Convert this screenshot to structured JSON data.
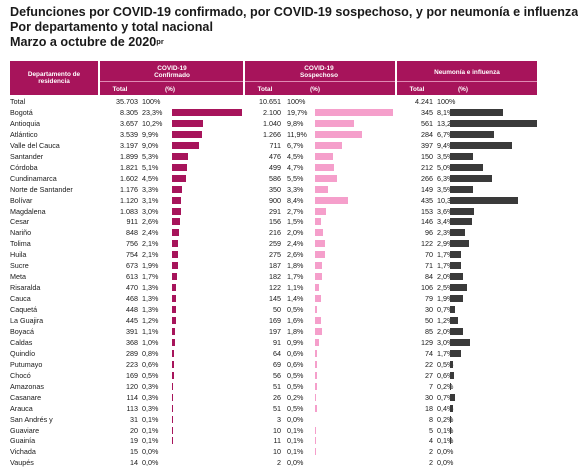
{
  "title_line1": "Defunciones por COVID-19 confirmado, por COVID-19 sospechoso, y por neumonía e influenza",
  "title_line2": "Por departamento y total nacional",
  "title_line3": "Marzo a octubre de 2020",
  "title_line3_sup": "pr",
  "headers": {
    "dept": "Departamento de residencia",
    "g1": "COVID-19 Confirmado",
    "g2": "COVID-19 Sospechoso",
    "g3": "Neumonía e influenza",
    "total": "Total",
    "pct": "(%)"
  },
  "colors": {
    "header": "#a7145b",
    "confirmado": "#a7145b",
    "sospechoso": "#f59fcb",
    "neumonia": "#3a3a3a"
  },
  "chart_data": {
    "type": "bar",
    "title": "Defunciones por COVID-19 confirmado, por COVID-19 sospechoso, y por neumonía e influenza",
    "categories": [
      "Total",
      "Bogotá",
      "Antioquia",
      "Atlántico",
      "Valle del Cauca",
      "Santander",
      "Córdoba",
      "Cundinamarca",
      "Norte de Santander",
      "Bolívar",
      "Magdalena",
      "Cesar",
      "Nariño",
      "Tolima",
      "Huila",
      "Sucre",
      "Meta",
      "Risaralda",
      "Cauca",
      "Caquetá",
      "La Guajira",
      "Boyacá",
      "Caldas",
      "Quindío",
      "Putumayo",
      "Chocó",
      "Amazonas",
      "Casanare",
      "Arauca",
      "San Andrés y",
      "Guaviare",
      "Guainía",
      "Vichada",
      "Vaupés"
    ],
    "series": [
      {
        "name": "COVID-19 Confirmado",
        "total": [
          "35.703",
          "8.305",
          "3.657",
          "3.539",
          "3.197",
          "1.899",
          "1.821",
          "1.602",
          "1.176",
          "1.120",
          "1.083",
          "911",
          "848",
          "756",
          "754",
          "673",
          "613",
          "470",
          "468",
          "448",
          "445",
          "391",
          "368",
          "289",
          "223",
          "169",
          "120",
          "114",
          "113",
          "31",
          "20",
          "19",
          "15",
          "14"
        ],
        "pct": [
          "100%",
          "23,3%",
          "10,2%",
          "9,9%",
          "9,0%",
          "5,3%",
          "5,1%",
          "4,5%",
          "3,3%",
          "3,1%",
          "3,0%",
          "2,6%",
          "2,4%",
          "2,1%",
          "2,1%",
          "1,9%",
          "1,7%",
          "1,3%",
          "1,3%",
          "1,3%",
          "1,2%",
          "1,1%",
          "1,0%",
          "0,8%",
          "0,6%",
          "0,5%",
          "0,3%",
          "0,3%",
          "0,3%",
          "0,1%",
          "0,1%",
          "0,1%",
          "0,0%",
          "0,0%"
        ],
        "values": [
          100,
          23.3,
          10.2,
          9.9,
          9.0,
          5.3,
          5.1,
          4.5,
          3.3,
          3.1,
          3.0,
          2.6,
          2.4,
          2.1,
          2.1,
          1.9,
          1.7,
          1.3,
          1.3,
          1.3,
          1.2,
          1.1,
          1.0,
          0.8,
          0.6,
          0.5,
          0.3,
          0.3,
          0.3,
          0.1,
          0.1,
          0.1,
          0.0,
          0.0
        ]
      },
      {
        "name": "COVID-19 Sospechoso",
        "total": [
          "10.651",
          "2.100",
          "1.040",
          "1.266",
          "711",
          "476",
          "499",
          "586",
          "350",
          "900",
          "291",
          "156",
          "216",
          "259",
          "275",
          "187",
          "182",
          "122",
          "145",
          "50",
          "169",
          "197",
          "91",
          "64",
          "69",
          "56",
          "51",
          "26",
          "51",
          "3",
          "10",
          "11",
          "10",
          "2"
        ],
        "pct": [
          "100%",
          "19,7%",
          "9,8%",
          "11,9%",
          "6,7%",
          "4,5%",
          "4,7%",
          "5,5%",
          "3,3%",
          "8,4%",
          "2,7%",
          "1,5%",
          "2,0%",
          "2,4%",
          "2,6%",
          "1,8%",
          "1,7%",
          "1,1%",
          "1,4%",
          "0,5%",
          "1,6%",
          "1,8%",
          "0,9%",
          "0,6%",
          "0,6%",
          "0,5%",
          "0,5%",
          "0,2%",
          "0,5%",
          "0,0%",
          "0,1%",
          "0,1%",
          "0,1%",
          "0,0%"
        ],
        "values": [
          100,
          19.7,
          9.8,
          11.9,
          6.7,
          4.5,
          4.7,
          5.5,
          3.3,
          8.4,
          2.7,
          1.5,
          2.0,
          2.4,
          2.6,
          1.8,
          1.7,
          1.1,
          1.4,
          0.5,
          1.6,
          1.8,
          0.9,
          0.6,
          0.6,
          0.5,
          0.5,
          0.2,
          0.5,
          0.0,
          0.1,
          0.1,
          0.1,
          0.0
        ]
      },
      {
        "name": "Neumonía e influenza",
        "total": [
          "4.241",
          "345",
          "561",
          "284",
          "397",
          "150",
          "212",
          "266",
          "149",
          "435",
          "153",
          "146",
          "96",
          "122",
          "70",
          "71",
          "84",
          "106",
          "79",
          "30",
          "50",
          "85",
          "129",
          "74",
          "22",
          "27",
          "7",
          "30",
          "18",
          "8",
          "5",
          "4",
          "2",
          "2"
        ],
        "pct": [
          "100%",
          "8,1%",
          "13,2%",
          "6,7%",
          "9,4%",
          "3,5%",
          "5,0%",
          "6,3%",
          "3,5%",
          "10,3%",
          "3,6%",
          "3,4%",
          "2,3%",
          "2,9%",
          "1,7%",
          "1,7%",
          "2,0%",
          "2,5%",
          "1,9%",
          "0,7%",
          "1,2%",
          "2,0%",
          "3,0%",
          "1,7%",
          "0,5%",
          "0,6%",
          "0,2%",
          "0,7%",
          "0,4%",
          "0,2%",
          "0,1%",
          "0,1%",
          "0,0%",
          "0,0%"
        ],
        "values": [
          100,
          8.1,
          13.2,
          6.7,
          9.4,
          3.5,
          5.0,
          6.3,
          3.5,
          10.3,
          3.6,
          3.4,
          2.3,
          2.9,
          1.7,
          1.7,
          2.0,
          2.5,
          1.9,
          0.7,
          1.2,
          2.0,
          3.0,
          1.7,
          0.5,
          0.6,
          0.2,
          0.7,
          0.4,
          0.2,
          0.1,
          0.1,
          0.0,
          0.0
        ]
      }
    ]
  }
}
